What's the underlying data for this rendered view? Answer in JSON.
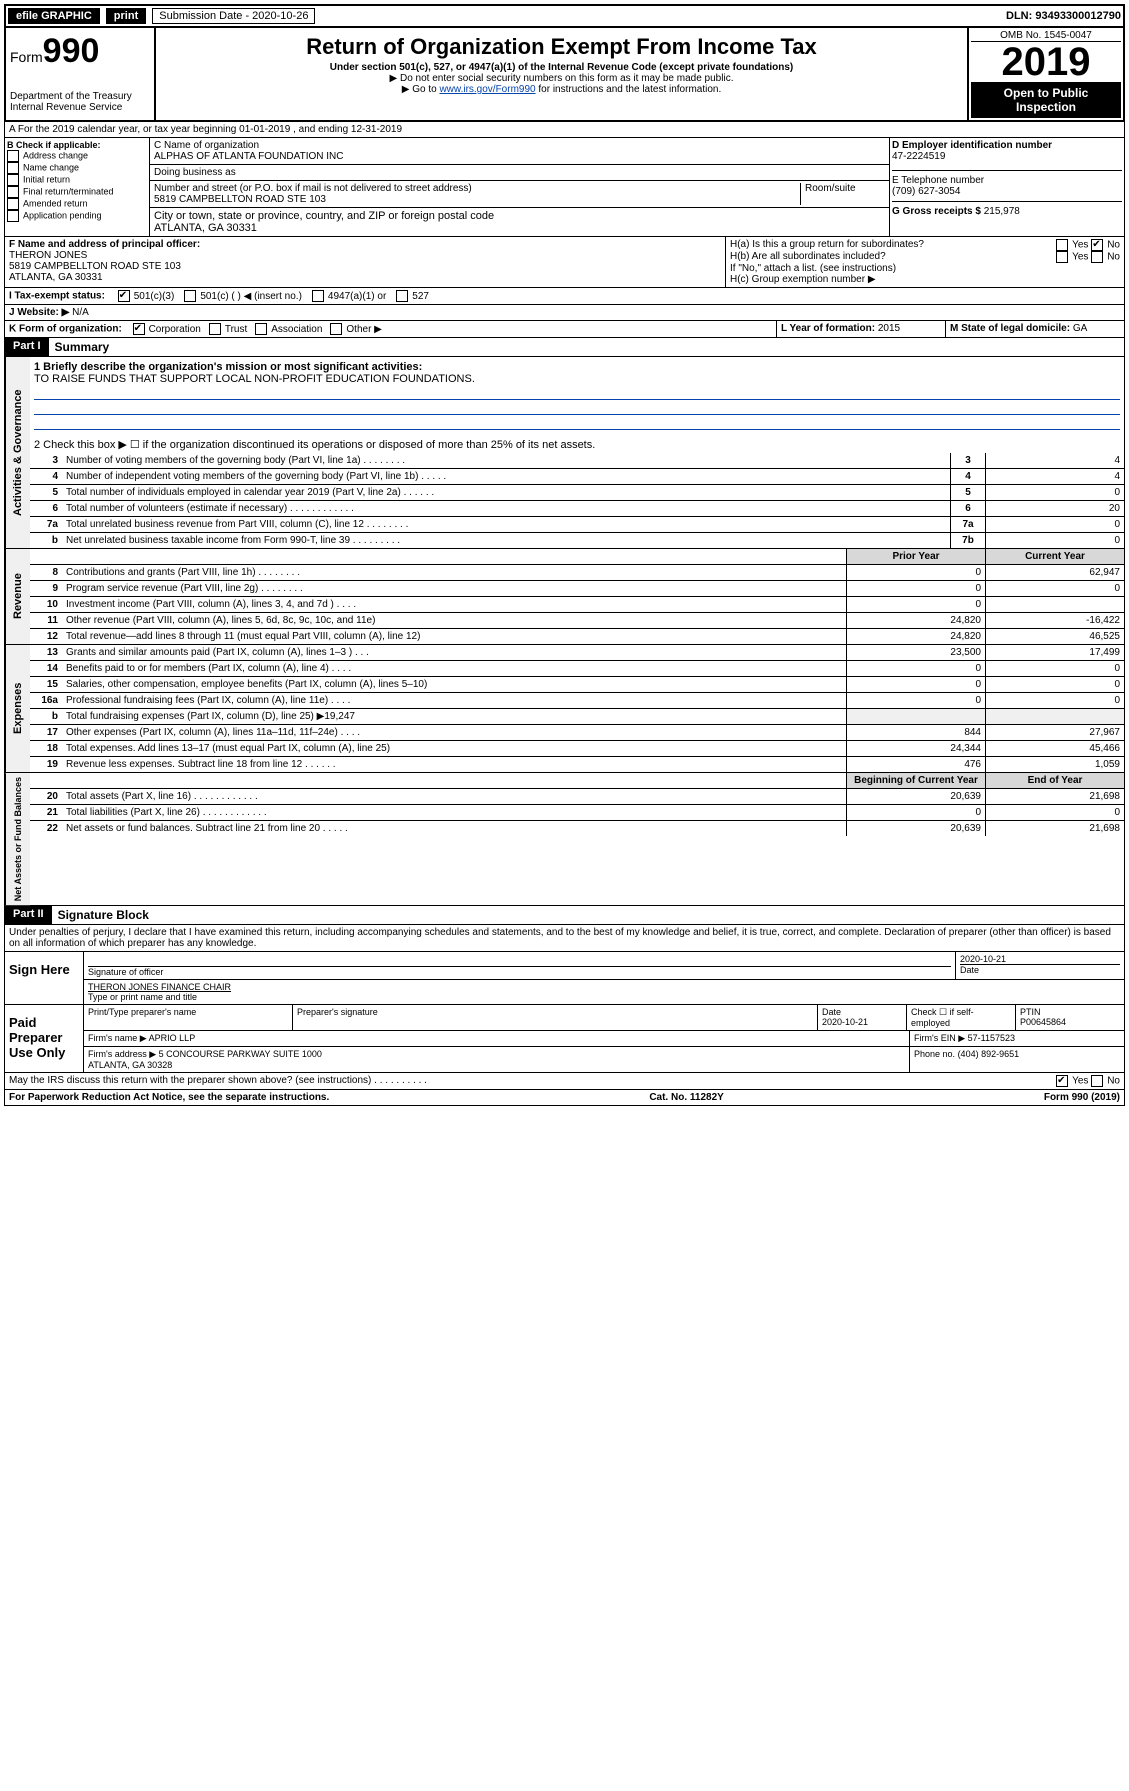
{
  "topbar": {
    "efile": "efile GRAPHIC",
    "print": "print",
    "submission": "Submission Date - 2020-10-26",
    "dln": "DLN: 93493300012790"
  },
  "header": {
    "form_prefix": "Form",
    "form_number": "990",
    "dept": "Department of the Treasury\nInternal Revenue Service",
    "title": "Return of Organization Exempt From Income Tax",
    "subtitle": "Under section 501(c), 527, or 4947(a)(1) of the Internal Revenue Code (except private foundations)",
    "note1": "▶ Do not enter social security numbers on this form as it may be made public.",
    "note2_pre": "▶ Go to ",
    "note2_link": "www.irs.gov/Form990",
    "note2_post": " for instructions and the latest information.",
    "omb": "OMB No. 1545-0047",
    "year": "2019",
    "open": "Open to Public Inspection"
  },
  "line_a": "A For the 2019 calendar year, or tax year beginning 01-01-2019    , and ending 12-31-2019",
  "box_b": {
    "label": "B Check if applicable:",
    "items": [
      "Address change",
      "Name change",
      "Initial return",
      "Final return/terminated",
      "Amended return",
      "Application pending"
    ]
  },
  "box_c": {
    "label": "C Name of organization",
    "name": "ALPHAS OF ATLANTA FOUNDATION INC",
    "dba_label": "Doing business as",
    "addr_label": "Number and street (or P.O. box if mail is not delivered to street address)",
    "room": "Room/suite",
    "addr": "5819 CAMPBELLTON ROAD STE 103",
    "city_label": "City or town, state or province, country, and ZIP or foreign postal code",
    "city": "ATLANTA, GA  30331"
  },
  "box_d": {
    "label": "D Employer identification number",
    "value": "47-2224519"
  },
  "box_e": {
    "label": "E Telephone number",
    "value": "(709) 627-3054"
  },
  "box_g": {
    "label": "G Gross receipts $",
    "value": "215,978"
  },
  "box_f": {
    "label": "F  Name and address of principal officer:",
    "name": "THERON JONES",
    "addr": "5819 CAMPBELLTON ROAD STE 103\nATLANTA, GA  30331"
  },
  "box_h": {
    "ha": "H(a)  Is this a group return for subordinates?",
    "hb": "H(b)  Are all subordinates included?",
    "hb_note": "If \"No,\" attach a list. (see instructions)",
    "hc": "H(c)  Group exemption number ▶",
    "yes": "Yes",
    "no": "No"
  },
  "box_i": {
    "label": "I    Tax-exempt status:",
    "opts": [
      "501(c)(3)",
      "501(c) (   ) ◀ (insert no.)",
      "4947(a)(1) or",
      "527"
    ]
  },
  "box_j": {
    "label": "J    Website: ▶",
    "value": "N/A"
  },
  "box_k": {
    "label": "K Form of organization:",
    "opts": [
      "Corporation",
      "Trust",
      "Association",
      "Other ▶"
    ]
  },
  "box_l": {
    "label": "L Year of formation:",
    "value": "2015"
  },
  "box_m": {
    "label": "M State of legal domicile:",
    "value": "GA"
  },
  "part1": {
    "label": "Part I",
    "title": "Summary"
  },
  "summary": {
    "l1_label": "1  Briefly describe the organization's mission or most significant activities:",
    "l1_text": "TO RAISE FUNDS THAT SUPPORT LOCAL NON-PROFIT EDUCATION FOUNDATIONS.",
    "l2": "2    Check this box ▶ ☐  if the organization discontinued its operations or disposed of more than 25% of its net assets.",
    "lines_gov": [
      {
        "n": "3",
        "t": "Number of voting members of the governing body (Part VI, line 1a)  .    .    .    .    .    .    .    .",
        "b": "3",
        "v": "4"
      },
      {
        "n": "4",
        "t": "Number of independent voting members of the governing body (Part VI, line 1b)   .    .    .    .    .",
        "b": "4",
        "v": "4"
      },
      {
        "n": "5",
        "t": "Total number of individuals employed in calendar year 2019 (Part V, line 2a)   .    .    .    .    .    .",
        "b": "5",
        "v": "0"
      },
      {
        "n": "6",
        "t": "Total number of volunteers (estimate if necessary)   .    .    .    .    .    .    .    .    .    .    .    .",
        "b": "6",
        "v": "20"
      },
      {
        "n": "7a",
        "t": "Total unrelated business revenue from Part VIII, column (C), line 12   .    .    .    .    .    .    .    .",
        "b": "7a",
        "v": "0"
      },
      {
        "n": "b",
        "t": "Net unrelated business taxable income from Form 990-T, line 39   .    .    .    .    .    .    .    .    .",
        "b": "7b",
        "v": "0"
      }
    ],
    "col_prior": "Prior Year",
    "col_current": "Current Year",
    "revenue": [
      {
        "n": "8",
        "t": "Contributions and grants (Part VIII, line 1h)   .    .    .    .    .    .    .    .",
        "p": "0",
        "c": "62,947"
      },
      {
        "n": "9",
        "t": "Program service revenue (Part VIII, line 2g)   .    .    .    .    .    .    .    .",
        "p": "0",
        "c": "0"
      },
      {
        "n": "10",
        "t": "Investment income (Part VIII, column (A), lines 3, 4, and 7d )   .    .    .    .",
        "p": "0",
        "c": ""
      },
      {
        "n": "11",
        "t": "Other revenue (Part VIII, column (A), lines 5, 6d, 8c, 9c, 10c, and 11e)",
        "p": "24,820",
        "c": "-16,422"
      },
      {
        "n": "12",
        "t": "Total revenue—add lines 8 through 11 (must equal Part VIII, column (A), line 12)",
        "p": "24,820",
        "c": "46,525"
      }
    ],
    "expenses": [
      {
        "n": "13",
        "t": "Grants and similar amounts paid (Part IX, column (A), lines 1–3 )   .    .    .",
        "p": "23,500",
        "c": "17,499"
      },
      {
        "n": "14",
        "t": "Benefits paid to or for members (Part IX, column (A), line 4)   .    .    .    .",
        "p": "0",
        "c": "0"
      },
      {
        "n": "15",
        "t": "Salaries, other compensation, employee benefits (Part IX, column (A), lines 5–10)",
        "p": "0",
        "c": "0"
      },
      {
        "n": "16a",
        "t": "Professional fundraising fees (Part IX, column (A), line 11e)   .    .    .    .",
        "p": "0",
        "c": "0"
      },
      {
        "n": "b",
        "t": "Total fundraising expenses (Part IX, column (D), line 25) ▶19,247",
        "p": "",
        "c": "",
        "shade": true
      },
      {
        "n": "17",
        "t": "Other expenses (Part IX, column (A), lines 11a–11d, 11f–24e)   .    .    .    .",
        "p": "844",
        "c": "27,967"
      },
      {
        "n": "18",
        "t": "Total expenses. Add lines 13–17 (must equal Part IX, column (A), line 25)",
        "p": "24,344",
        "c": "45,466"
      },
      {
        "n": "19",
        "t": "Revenue less expenses. Subtract line 18 from line 12   .    .    .    .    .    .",
        "p": "476",
        "c": "1,059"
      }
    ],
    "col_begin": "Beginning of Current Year",
    "col_end": "End of Year",
    "netassets": [
      {
        "n": "20",
        "t": "Total assets (Part X, line 16)   .    .    .    .    .    .    .    .    .    .    .    .",
        "p": "20,639",
        "c": "21,698"
      },
      {
        "n": "21",
        "t": "Total liabilities (Part X, line 26)   .    .    .    .    .    .    .    .    .    .    .    .",
        "p": "0",
        "c": "0"
      },
      {
        "n": "22",
        "t": "Net assets or fund balances. Subtract line 21 from line 20   .    .    .    .    .",
        "p": "20,639",
        "c": "21,698"
      }
    ]
  },
  "vert": {
    "gov": "Activities & Governance",
    "rev": "Revenue",
    "exp": "Expenses",
    "net": "Net Assets or Fund Balances"
  },
  "part2": {
    "label": "Part II",
    "title": "Signature Block"
  },
  "perjury": "Under penalties of perjury, I declare that I have examined this return, including accompanying schedules and statements, and to the best of my knowledge and belief, it is true, correct, and complete. Declaration of preparer (other than officer) is based on all information of which preparer has any knowledge.",
  "sign": {
    "here": "Sign Here",
    "sig_officer": "Signature of officer",
    "date": "2020-10-21",
    "date_label": "Date",
    "name": "THERON JONES FINANCE CHAIR",
    "name_label": "Type or print name and title"
  },
  "paid": {
    "label": "Paid Preparer Use Only",
    "h_name": "Print/Type preparer's name",
    "h_sig": "Preparer's signature",
    "h_date": "Date",
    "date": "2020-10-21",
    "h_check": "Check ☐ if self-employed",
    "h_ptin": "PTIN",
    "ptin": "P00645864",
    "firm_name_l": "Firm's name    ▶",
    "firm_name": "APRIO LLP",
    "firm_ein_l": "Firm's EIN ▶",
    "firm_ein": "57-1157523",
    "firm_addr_l": "Firm's address ▶",
    "firm_addr": "5 CONCOURSE PARKWAY SUITE 1000\nATLANTA, GA  30328",
    "phone_l": "Phone no.",
    "phone": "(404) 892-9651"
  },
  "bottom": {
    "discuss": "May the IRS discuss this return with the preparer shown above? (see instructions)    .    .    .    .    .    .    .    .    .    .",
    "yes": "Yes",
    "no": "No",
    "paperwork": "For Paperwork Reduction Act Notice, see the separate instructions.",
    "cat": "Cat. No. 11282Y",
    "form": "Form 990 (2019)"
  }
}
